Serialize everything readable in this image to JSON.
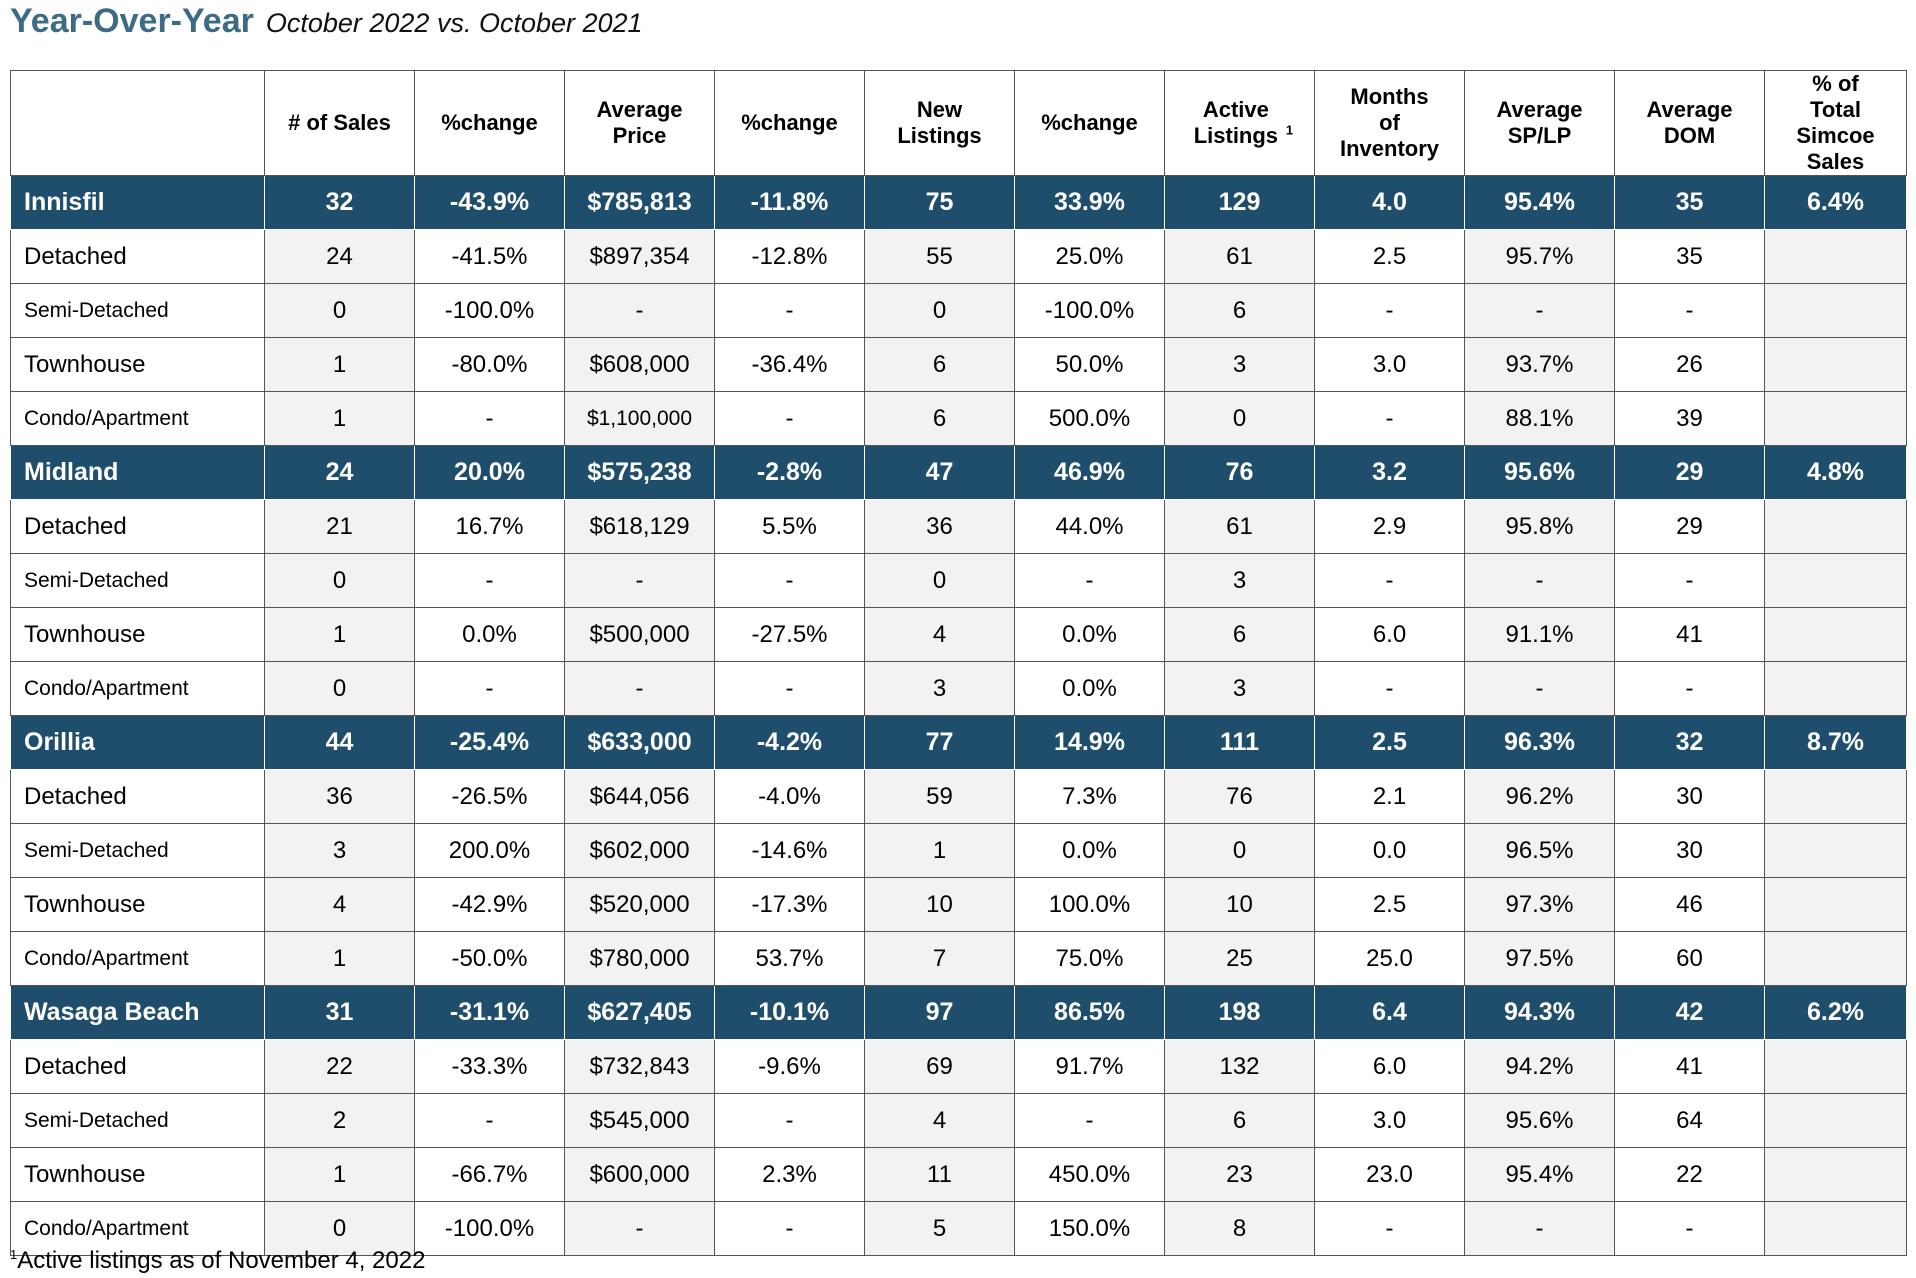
{
  "title": "Year-Over-Year",
  "subtitle": "October 2022 vs. October 2021",
  "headers": [
    "",
    "# of Sales",
    "%change",
    "Average Price",
    "%change",
    "New Listings",
    "%change",
    "Active Listings",
    "Months of Inventory",
    "Average SP/LP",
    "Average DOM",
    "% of Total Simcoe Sales"
  ],
  "header_sup": "1",
  "groups": [
    {
      "row": [
        "Innisfil",
        "32",
        "-43.9%",
        "$785,813",
        "-11.8%",
        "75",
        "33.9%",
        "129",
        "4.0",
        "95.4%",
        "35",
        "6.4%"
      ],
      "subs": [
        [
          "Detached",
          "24",
          "-41.5%",
          "$897,354",
          "-12.8%",
          "55",
          "25.0%",
          "61",
          "2.5",
          "95.7%",
          "35",
          ""
        ],
        [
          "Semi-Detached",
          "0",
          "-100.0%",
          "-",
          "-",
          "0",
          "-100.0%",
          "6",
          "-",
          "-",
          "-",
          ""
        ],
        [
          "Townhouse",
          "1",
          "-80.0%",
          "$608,000",
          "-36.4%",
          "6",
          "50.0%",
          "3",
          "3.0",
          "93.7%",
          "26",
          ""
        ],
        [
          "Condo/Apartment",
          "1",
          "-",
          "$1,100,000",
          "-",
          "6",
          "500.0%",
          "0",
          "-",
          "88.1%",
          "39",
          ""
        ]
      ]
    },
    {
      "row": [
        "Midland",
        "24",
        "20.0%",
        "$575,238",
        "-2.8%",
        "47",
        "46.9%",
        "76",
        "3.2",
        "95.6%",
        "29",
        "4.8%"
      ],
      "subs": [
        [
          "Detached",
          "21",
          "16.7%",
          "$618,129",
          "5.5%",
          "36",
          "44.0%",
          "61",
          "2.9",
          "95.8%",
          "29",
          ""
        ],
        [
          "Semi-Detached",
          "0",
          "-",
          "-",
          "-",
          "0",
          "-",
          "3",
          "-",
          "-",
          "-",
          ""
        ],
        [
          "Townhouse",
          "1",
          "0.0%",
          "$500,000",
          "-27.5%",
          "4",
          "0.0%",
          "6",
          "6.0",
          "91.1%",
          "41",
          ""
        ],
        [
          "Condo/Apartment",
          "0",
          "-",
          "-",
          "-",
          "3",
          "0.0%",
          "3",
          "-",
          "-",
          "-",
          ""
        ]
      ]
    },
    {
      "row": [
        "Orillia",
        "44",
        "-25.4%",
        "$633,000",
        "-4.2%",
        "77",
        "14.9%",
        "111",
        "2.5",
        "96.3%",
        "32",
        "8.7%"
      ],
      "subs": [
        [
          "Detached",
          "36",
          "-26.5%",
          "$644,056",
          "-4.0%",
          "59",
          "7.3%",
          "76",
          "2.1",
          "96.2%",
          "30",
          ""
        ],
        [
          "Semi-Detached",
          "3",
          "200.0%",
          "$602,000",
          "-14.6%",
          "1",
          "0.0%",
          "0",
          "0.0",
          "96.5%",
          "30",
          ""
        ],
        [
          "Townhouse",
          "4",
          "-42.9%",
          "$520,000",
          "-17.3%",
          "10",
          "100.0%",
          "10",
          "2.5",
          "97.3%",
          "46",
          ""
        ],
        [
          "Condo/Apartment",
          "1",
          "-50.0%",
          "$780,000",
          "53.7%",
          "7",
          "75.0%",
          "25",
          "25.0",
          "97.5%",
          "60",
          ""
        ]
      ]
    },
    {
      "row": [
        "Wasaga Beach",
        "31",
        "-31.1%",
        "$627,405",
        "-10.1%",
        "97",
        "86.5%",
        "198",
        "6.4",
        "94.3%",
        "42",
        "6.2%"
      ],
      "subs": [
        [
          "Detached",
          "22",
          "-33.3%",
          "$732,843",
          "-9.6%",
          "69",
          "91.7%",
          "132",
          "6.0",
          "94.2%",
          "41",
          ""
        ],
        [
          "Semi-Detached",
          "2",
          "-",
          "$545,000",
          "-",
          "4",
          "-",
          "6",
          "3.0",
          "95.6%",
          "64",
          ""
        ],
        [
          "Townhouse",
          "1",
          "-66.7%",
          "$600,000",
          "2.3%",
          "11",
          "450.0%",
          "23",
          "23.0",
          "95.4%",
          "22",
          ""
        ],
        [
          "Condo/Apartment",
          "0",
          "-100.0%",
          "-",
          "-",
          "5",
          "150.0%",
          "8",
          "-",
          "-",
          "-",
          ""
        ]
      ]
    }
  ],
  "footnote_sup": "1",
  "footnote": "Active listings as of November 4, 2022",
  "colors": {
    "title": "#3d6b84",
    "group_row": "#1f4e6d",
    "shaded_cell": "#f2f2f2"
  }
}
